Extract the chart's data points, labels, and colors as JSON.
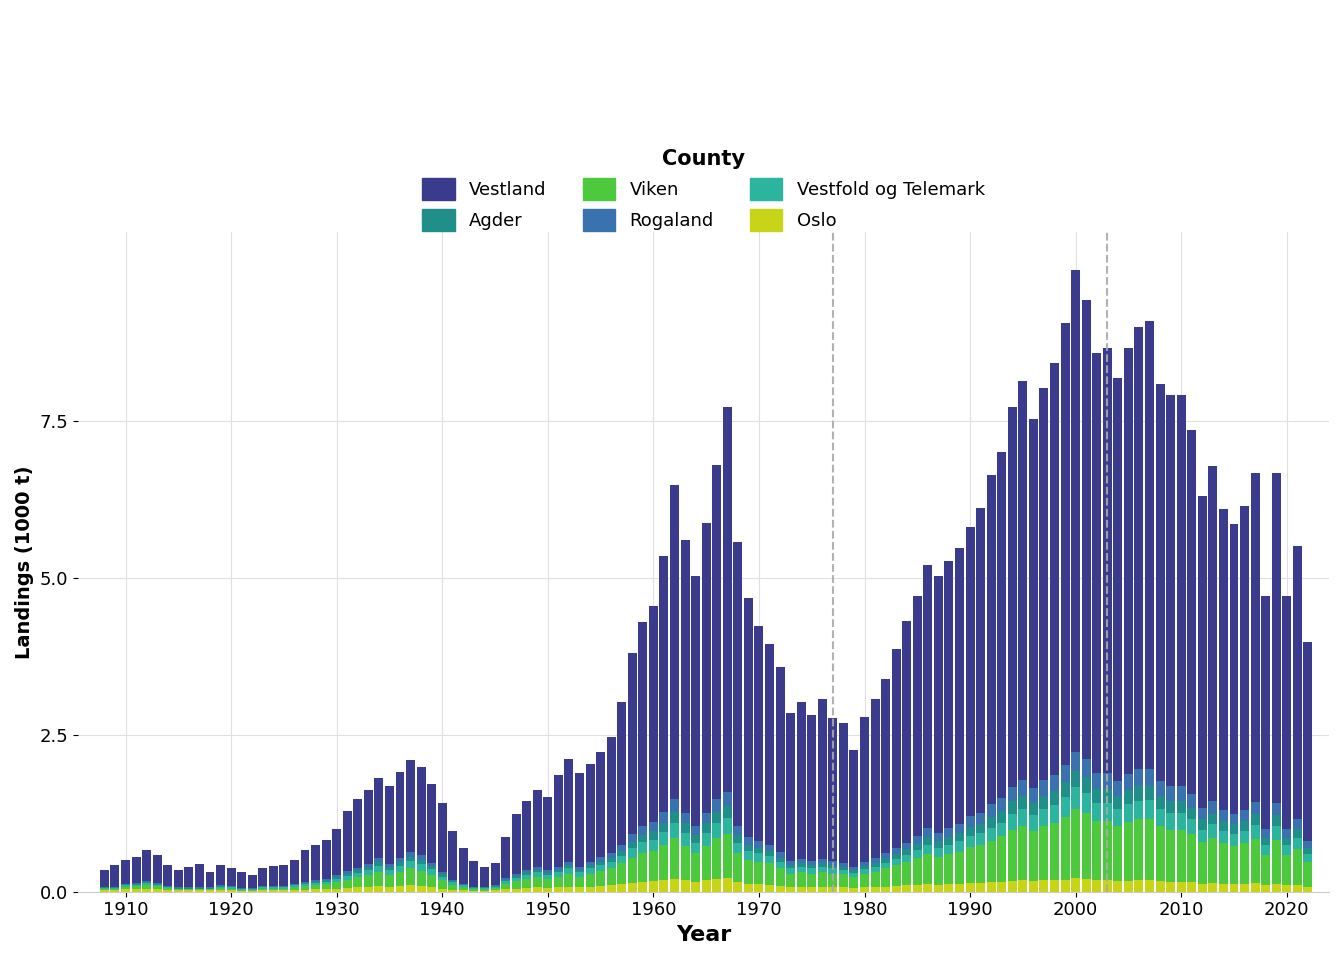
{
  "title": "",
  "xlabel": "Year",
  "ylabel": "Landings (1000 t)",
  "colors": {
    "Vestland": "#3B3B8E",
    "Rogaland": "#3A72B0",
    "Agder": "#208F8A",
    "Vestfold og Telemark": "#2CB59E",
    "Viken": "#4DC93E",
    "Oslo": "#C8D418"
  },
  "vlines": [
    1977,
    2003
  ],
  "ylim": [
    0,
    10.5
  ],
  "yticks": [
    0.0,
    2.5,
    5.0,
    7.5
  ],
  "background_color": "#FFFFFF",
  "grid_color": "#E0E0E0",
  "years": [
    1908,
    1909,
    1910,
    1911,
    1912,
    1913,
    1914,
    1915,
    1916,
    1917,
    1918,
    1919,
    1920,
    1921,
    1922,
    1923,
    1924,
    1925,
    1926,
    1927,
    1928,
    1929,
    1930,
    1931,
    1932,
    1933,
    1934,
    1935,
    1936,
    1937,
    1938,
    1939,
    1940,
    1941,
    1942,
    1943,
    1944,
    1945,
    1946,
    1947,
    1948,
    1949,
    1950,
    1951,
    1952,
    1953,
    1954,
    1955,
    1956,
    1957,
    1958,
    1959,
    1960,
    1961,
    1962,
    1963,
    1964,
    1965,
    1966,
    1967,
    1968,
    1969,
    1970,
    1971,
    1972,
    1973,
    1974,
    1975,
    1976,
    1977,
    1978,
    1979,
    1980,
    1981,
    1982,
    1983,
    1984,
    1985,
    1986,
    1987,
    1988,
    1989,
    1990,
    1991,
    1992,
    1993,
    1994,
    1995,
    1996,
    1997,
    1998,
    1999,
    2000,
    2001,
    2002,
    2003,
    2004,
    2005,
    2006,
    2007,
    2008,
    2009,
    2010,
    2011,
    2012,
    2013,
    2014,
    2015,
    2016,
    2017,
    2018,
    2019,
    2020,
    2021,
    2022
  ],
  "Oslo": [
    0.03,
    0.03,
    0.04,
    0.04,
    0.05,
    0.04,
    0.03,
    0.02,
    0.02,
    0.02,
    0.02,
    0.03,
    0.02,
    0.01,
    0.01,
    0.02,
    0.02,
    0.02,
    0.03,
    0.03,
    0.04,
    0.04,
    0.05,
    0.06,
    0.07,
    0.08,
    0.09,
    0.08,
    0.09,
    0.1,
    0.09,
    0.08,
    0.05,
    0.03,
    0.02,
    0.01,
    0.01,
    0.02,
    0.04,
    0.05,
    0.06,
    0.07,
    0.06,
    0.07,
    0.08,
    0.07,
    0.08,
    0.09,
    0.1,
    0.12,
    0.14,
    0.16,
    0.17,
    0.19,
    0.21,
    0.18,
    0.15,
    0.18,
    0.21,
    0.22,
    0.15,
    0.13,
    0.12,
    0.11,
    0.09,
    0.07,
    0.07,
    0.07,
    0.07,
    0.07,
    0.07,
    0.06,
    0.07,
    0.07,
    0.08,
    0.09,
    0.1,
    0.11,
    0.12,
    0.11,
    0.12,
    0.13,
    0.14,
    0.14,
    0.15,
    0.16,
    0.17,
    0.18,
    0.17,
    0.18,
    0.18,
    0.19,
    0.22,
    0.21,
    0.18,
    0.18,
    0.17,
    0.17,
    0.18,
    0.18,
    0.17,
    0.16,
    0.16,
    0.15,
    0.13,
    0.14,
    0.13,
    0.12,
    0.13,
    0.14,
    0.1,
    0.13,
    0.1,
    0.11,
    0.08
  ],
  "Viken": [
    0.02,
    0.02,
    0.04,
    0.05,
    0.06,
    0.05,
    0.03,
    0.02,
    0.02,
    0.02,
    0.02,
    0.03,
    0.03,
    0.02,
    0.02,
    0.03,
    0.03,
    0.03,
    0.05,
    0.06,
    0.07,
    0.08,
    0.1,
    0.13,
    0.16,
    0.18,
    0.22,
    0.18,
    0.22,
    0.27,
    0.24,
    0.19,
    0.13,
    0.08,
    0.05,
    0.03,
    0.03,
    0.04,
    0.09,
    0.12,
    0.15,
    0.17,
    0.14,
    0.17,
    0.21,
    0.17,
    0.21,
    0.24,
    0.27,
    0.33,
    0.4,
    0.46,
    0.48,
    0.55,
    0.65,
    0.55,
    0.46,
    0.55,
    0.65,
    0.7,
    0.46,
    0.38,
    0.36,
    0.34,
    0.28,
    0.22,
    0.24,
    0.22,
    0.24,
    0.22,
    0.21,
    0.18,
    0.22,
    0.25,
    0.29,
    0.33,
    0.38,
    0.42,
    0.48,
    0.44,
    0.48,
    0.51,
    0.57,
    0.6,
    0.66,
    0.72,
    0.82,
    0.87,
    0.8,
    0.87,
    0.92,
    1.0,
    1.1,
    1.04,
    0.94,
    0.94,
    0.87,
    0.94,
    0.97,
    0.98,
    0.87,
    0.83,
    0.83,
    0.77,
    0.66,
    0.71,
    0.64,
    0.61,
    0.64,
    0.7,
    0.49,
    0.7,
    0.49,
    0.57,
    0.4
  ],
  "Vestfold og Telemark": [
    0.01,
    0.01,
    0.02,
    0.02,
    0.03,
    0.02,
    0.01,
    0.01,
    0.01,
    0.01,
    0.01,
    0.02,
    0.02,
    0.01,
    0.01,
    0.02,
    0.02,
    0.02,
    0.02,
    0.03,
    0.03,
    0.04,
    0.05,
    0.06,
    0.07,
    0.08,
    0.1,
    0.08,
    0.1,
    0.12,
    0.11,
    0.09,
    0.06,
    0.04,
    0.03,
    0.02,
    0.02,
    0.02,
    0.04,
    0.05,
    0.06,
    0.07,
    0.06,
    0.07,
    0.08,
    0.07,
    0.08,
    0.09,
    0.1,
    0.12,
    0.15,
    0.17,
    0.18,
    0.21,
    0.24,
    0.21,
    0.17,
    0.21,
    0.24,
    0.26,
    0.17,
    0.14,
    0.13,
    0.12,
    0.1,
    0.08,
    0.08,
    0.08,
    0.08,
    0.08,
    0.07,
    0.06,
    0.07,
    0.08,
    0.09,
    0.1,
    0.11,
    0.13,
    0.15,
    0.14,
    0.15,
    0.16,
    0.18,
    0.19,
    0.21,
    0.22,
    0.25,
    0.27,
    0.25,
    0.27,
    0.28,
    0.31,
    0.34,
    0.32,
    0.29,
    0.29,
    0.27,
    0.29,
    0.3,
    0.3,
    0.27,
    0.26,
    0.26,
    0.24,
    0.2,
    0.22,
    0.2,
    0.19,
    0.2,
    0.22,
    0.15,
    0.22,
    0.15,
    0.18,
    0.12
  ],
  "Agder": [
    0.01,
    0.01,
    0.02,
    0.02,
    0.02,
    0.02,
    0.01,
    0.01,
    0.01,
    0.01,
    0.01,
    0.01,
    0.01,
    0.01,
    0.01,
    0.01,
    0.01,
    0.01,
    0.01,
    0.02,
    0.02,
    0.02,
    0.03,
    0.04,
    0.04,
    0.05,
    0.06,
    0.05,
    0.06,
    0.07,
    0.07,
    0.05,
    0.04,
    0.02,
    0.01,
    0.01,
    0.01,
    0.01,
    0.02,
    0.03,
    0.04,
    0.04,
    0.04,
    0.04,
    0.05,
    0.04,
    0.05,
    0.06,
    0.07,
    0.08,
    0.1,
    0.12,
    0.13,
    0.15,
    0.17,
    0.15,
    0.12,
    0.15,
    0.17,
    0.18,
    0.12,
    0.1,
    0.09,
    0.08,
    0.07,
    0.05,
    0.06,
    0.05,
    0.06,
    0.05,
    0.05,
    0.04,
    0.05,
    0.06,
    0.07,
    0.08,
    0.09,
    0.1,
    0.12,
    0.11,
    0.12,
    0.13,
    0.14,
    0.15,
    0.17,
    0.18,
    0.2,
    0.21,
    0.2,
    0.21,
    0.22,
    0.24,
    0.26,
    0.25,
    0.22,
    0.22,
    0.21,
    0.22,
    0.23,
    0.23,
    0.21,
    0.2,
    0.2,
    0.18,
    0.16,
    0.17,
    0.15,
    0.15,
    0.15,
    0.17,
    0.12,
    0.17,
    0.12,
    0.14,
    0.1
  ],
  "Rogaland": [
    0.01,
    0.01,
    0.01,
    0.01,
    0.01,
    0.01,
    0.01,
    0.01,
    0.01,
    0.01,
    0.01,
    0.01,
    0.01,
    0.01,
    0.01,
    0.01,
    0.01,
    0.01,
    0.02,
    0.02,
    0.02,
    0.02,
    0.03,
    0.04,
    0.04,
    0.05,
    0.06,
    0.05,
    0.06,
    0.07,
    0.07,
    0.05,
    0.04,
    0.02,
    0.02,
    0.01,
    0.01,
    0.01,
    0.03,
    0.04,
    0.04,
    0.05,
    0.04,
    0.05,
    0.06,
    0.05,
    0.06,
    0.07,
    0.08,
    0.1,
    0.13,
    0.14,
    0.15,
    0.17,
    0.2,
    0.17,
    0.14,
    0.17,
    0.2,
    0.22,
    0.14,
    0.12,
    0.11,
    0.1,
    0.09,
    0.07,
    0.07,
    0.07,
    0.07,
    0.07,
    0.06,
    0.05,
    0.07,
    0.07,
    0.08,
    0.09,
    0.1,
    0.12,
    0.14,
    0.13,
    0.14,
    0.15,
    0.17,
    0.18,
    0.2,
    0.21,
    0.23,
    0.25,
    0.23,
    0.25,
    0.26,
    0.28,
    0.31,
    0.29,
    0.26,
    0.26,
    0.25,
    0.26,
    0.27,
    0.27,
    0.24,
    0.23,
    0.23,
    0.22,
    0.18,
    0.2,
    0.18,
    0.17,
    0.18,
    0.2,
    0.14,
    0.2,
    0.14,
    0.16,
    0.11
  ],
  "Vestland": [
    0.26,
    0.34,
    0.38,
    0.42,
    0.5,
    0.44,
    0.34,
    0.27,
    0.32,
    0.37,
    0.25,
    0.32,
    0.29,
    0.25,
    0.2,
    0.29,
    0.32,
    0.34,
    0.38,
    0.5,
    0.56,
    0.62,
    0.74,
    0.95,
    1.1,
    1.18,
    1.28,
    1.24,
    1.37,
    1.46,
    1.4,
    1.26,
    1.1,
    0.77,
    0.56,
    0.41,
    0.32,
    0.36,
    0.65,
    0.95,
    1.1,
    1.22,
    1.17,
    1.46,
    1.64,
    1.49,
    1.55,
    1.67,
    1.85,
    2.27,
    2.88,
    3.24,
    3.44,
    4.07,
    5.0,
    4.34,
    3.98,
    4.61,
    5.33,
    6.14,
    4.52,
    3.8,
    3.42,
    3.2,
    2.95,
    2.36,
    2.5,
    2.32,
    2.54,
    2.27,
    2.23,
    1.87,
    2.3,
    2.54,
    2.77,
    3.17,
    3.53,
    3.83,
    4.19,
    4.1,
    4.25,
    4.39,
    4.61,
    4.84,
    5.24,
    5.51,
    6.05,
    6.35,
    5.87,
    6.23,
    6.55,
    7.04,
    7.67,
    7.31,
    6.68,
    6.77,
    6.41,
    6.77,
    7.04,
    7.13,
    6.32,
    6.23,
    6.23,
    5.79,
    4.97,
    5.33,
    4.79,
    4.61,
    4.84,
    5.24,
    3.71,
    5.24,
    3.71,
    4.34,
    3.17
  ]
}
